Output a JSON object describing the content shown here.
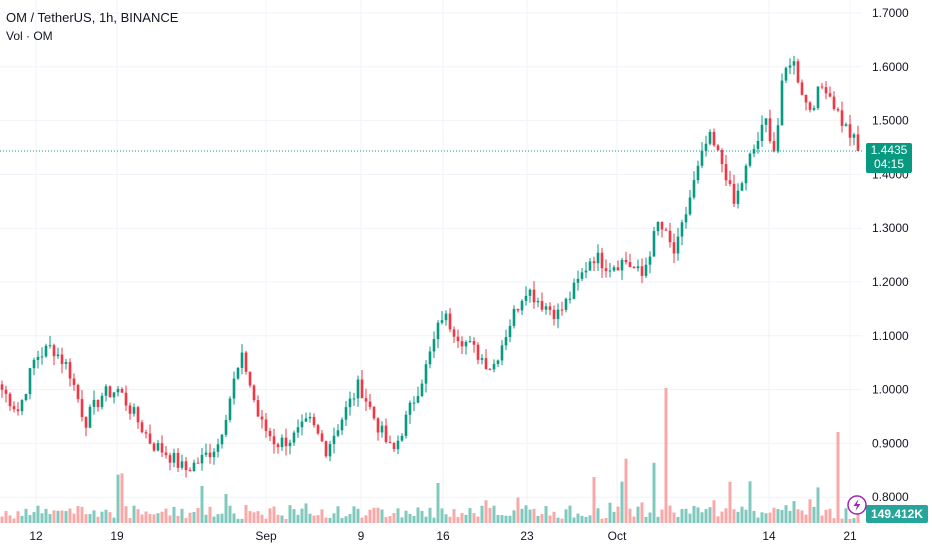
{
  "header": {
    "title": "OM / TetherUS, 1h, BINANCE",
    "subtitle": "Vol · OM"
  },
  "price_badge": {
    "price": "1.4435",
    "countdown": "04:15",
    "color": "#089981"
  },
  "volume_badge": {
    "value": "149.412K",
    "color": "#26a69a"
  },
  "colors": {
    "up": "#089981",
    "down": "#f23645",
    "vol_up": "#81c8be",
    "vol_down": "#f7a9a7",
    "grid": "#f0f3fa"
  },
  "chart_data": {
    "type": "candlestick",
    "ylim": [
      0.775,
      1.725
    ],
    "y_ticks": [
      "1.7000",
      "1.6000",
      "1.5000",
      "1.4000",
      "1.3000",
      "1.2000",
      "1.1000",
      "1.0000",
      "0.9000",
      "0.8000"
    ],
    "x_ticks": [
      "12",
      "19",
      "Sep",
      "9",
      "16",
      "23",
      "Oct",
      "14",
      "21"
    ],
    "last_price": 1.4435,
    "close_path": [
      [
        0,
        1.0
      ],
      [
        2,
        0.96
      ],
      [
        4,
        1.06
      ],
      [
        6,
        1.08
      ],
      [
        8,
        1.04
      ],
      [
        10,
        0.94
      ],
      [
        12,
        0.99
      ],
      [
        14,
        1.0
      ],
      [
        16,
        0.95
      ],
      [
        18,
        0.9
      ],
      [
        20,
        0.88
      ],
      [
        22,
        0.85
      ],
      [
        24,
        0.87
      ],
      [
        26,
        0.9
      ],
      [
        28,
        1.02
      ],
      [
        29,
        1.06
      ],
      [
        31,
        0.94
      ],
      [
        33,
        0.9
      ],
      [
        35,
        0.91
      ],
      [
        37,
        0.94
      ],
      [
        39,
        0.89
      ],
      [
        41,
        0.95
      ],
      [
        43,
        1.01
      ],
      [
        45,
        0.94
      ],
      [
        47,
        0.88
      ],
      [
        49,
        0.96
      ],
      [
        51,
        1.04
      ],
      [
        53,
        1.14
      ],
      [
        55,
        1.1
      ],
      [
        57,
        1.07
      ],
      [
        59,
        1.04
      ],
      [
        61,
        1.12
      ],
      [
        63,
        1.19
      ],
      [
        65,
        1.16
      ],
      [
        67,
        1.14
      ],
      [
        69,
        1.19
      ],
      [
        71,
        1.25
      ],
      [
        73,
        1.23
      ],
      [
        75,
        1.24
      ],
      [
        77,
        1.21
      ],
      [
        79,
        1.31
      ],
      [
        81,
        1.25
      ],
      [
        83,
        1.37
      ],
      [
        85,
        1.47
      ],
      [
        87,
        1.41
      ],
      [
        88,
        1.34
      ],
      [
        90,
        1.43
      ],
      [
        92,
        1.5
      ],
      [
        93,
        1.44
      ],
      [
        94,
        1.58
      ],
      [
        95,
        1.62
      ],
      [
        97,
        1.52
      ],
      [
        99,
        1.57
      ],
      [
        101,
        1.5
      ],
      [
        103,
        1.45
      ]
    ]
  }
}
